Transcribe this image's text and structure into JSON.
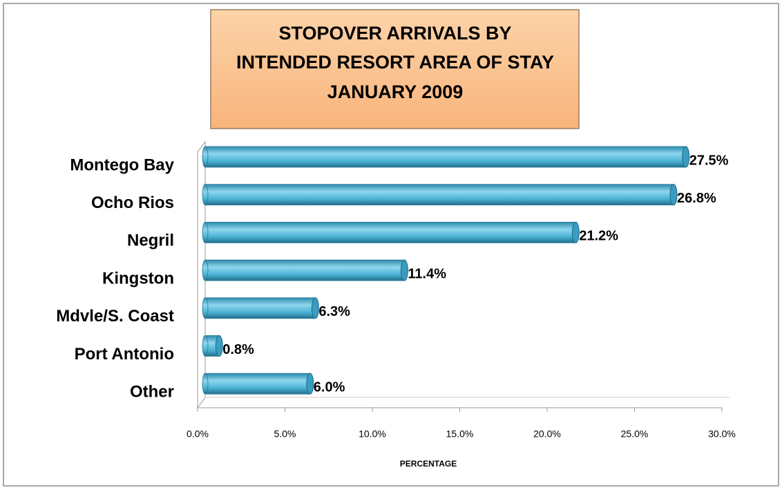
{
  "chart_data": {
    "type": "bar",
    "orientation": "horizontal",
    "title": [
      "STOPOVER ARRIVALS BY",
      "INTENDED RESORT AREA OF STAY",
      "JANUARY 2009"
    ],
    "categories": [
      "Montego Bay",
      "Ocho Rios",
      "Negril",
      "Kingston",
      "Mdvle/S. Coast",
      "Port Antonio",
      "Other"
    ],
    "values": [
      27.5,
      26.8,
      21.2,
      11.4,
      6.3,
      0.8,
      6.0
    ],
    "value_labels": [
      "27.5%",
      "26.8%",
      "21.2%",
      "11.4%",
      "6.3%",
      "0.8%",
      "6.0%"
    ],
    "color": "#4bb3d3",
    "x_label": "PERCENTAGE",
    "xlim": [
      0,
      30
    ],
    "xticks": [
      {
        "value": 0,
        "label": "0.0%"
      },
      {
        "value": 5,
        "label": "5.0%"
      },
      {
        "value": 10,
        "label": "10.0%"
      },
      {
        "value": 15,
        "label": "15.0%"
      },
      {
        "value": 20,
        "label": "20.0%"
      },
      {
        "value": 25,
        "label": "25.0%"
      },
      {
        "value": 30,
        "label": "30.0%"
      }
    ],
    "grid": false
  }
}
